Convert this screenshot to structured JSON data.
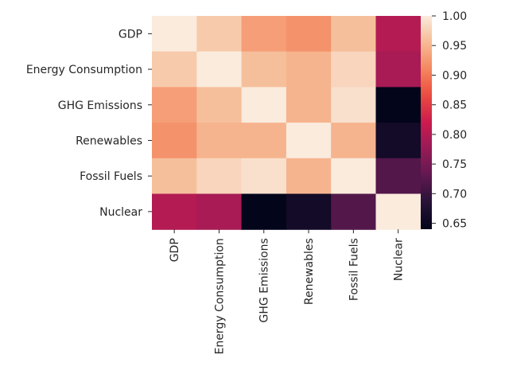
{
  "chart_data": {
    "type": "heatmap",
    "title": "",
    "xlabel": "",
    "ylabel": "",
    "categories": [
      "GDP",
      "Energy Consumption",
      "GHG Emissions",
      "Renewables",
      "Fossil Fuels",
      "Nuclear"
    ],
    "values": [
      [
        1.0,
        0.97,
        0.93,
        0.92,
        0.96,
        0.8
      ],
      [
        0.97,
        1.0,
        0.96,
        0.95,
        0.98,
        0.79
      ],
      [
        0.93,
        0.96,
        1.0,
        0.95,
        0.99,
        0.64
      ],
      [
        0.92,
        0.95,
        0.95,
        1.0,
        0.95,
        0.66
      ],
      [
        0.96,
        0.98,
        0.99,
        0.95,
        1.0,
        0.72
      ],
      [
        0.8,
        0.79,
        0.64,
        0.66,
        0.72,
        1.0
      ]
    ],
    "colorbar": {
      "range": [
        0.64,
        1.0
      ],
      "ticks": [
        "0.65",
        "0.70",
        "0.75",
        "0.80",
        "0.85",
        "0.90",
        "0.95",
        "1.00"
      ],
      "colormap": "rocket"
    }
  }
}
